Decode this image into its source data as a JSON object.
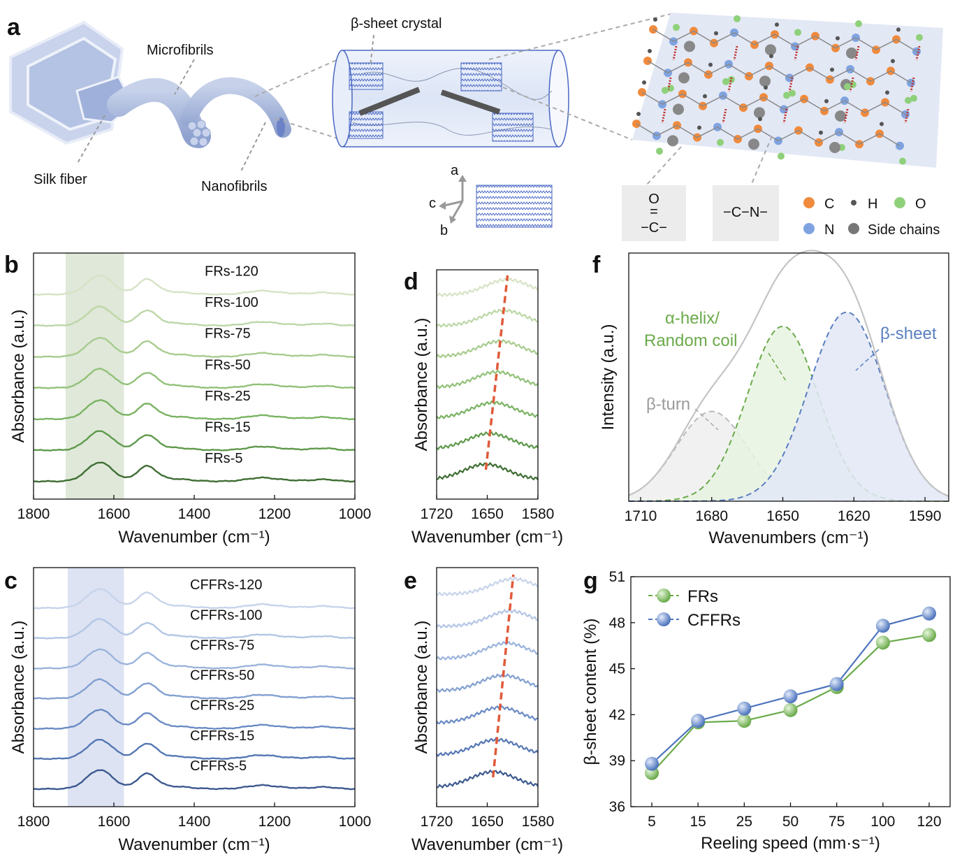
{
  "panel_a": {
    "label": "a",
    "labels": {
      "silk_fiber": "Silk fiber",
      "microfibrils": "Microfibrils",
      "nanofibrils": "Nanofibrils",
      "beta_sheet_crystal": "β-sheet crystal"
    },
    "axes": {
      "a": "a",
      "b": "b",
      "c": "c"
    },
    "group_boxes": {
      "carbonyl_top": "O",
      "carbonyl_mid": "=",
      "carbonyl_bottom": "−C−",
      "amide": "−C−N−"
    },
    "legend": [
      {
        "symbol": "C",
        "color": "#f08a3c"
      },
      {
        "symbol": "H",
        "color": "#555555"
      },
      {
        "symbol": "O",
        "color": "#8fd07a"
      },
      {
        "symbol": "N",
        "color": "#7fa3e0"
      },
      {
        "symbol": "Side chains",
        "color": "#777777"
      }
    ]
  },
  "chart_data": [
    {
      "panel": "b",
      "type": "line",
      "xlabel": "Wavenumber (cm⁻¹)",
      "ylabel": "Absorbance (a.u.)",
      "xlim": [
        1800,
        1000
      ],
      "xticks": [
        1800,
        1600,
        1400,
        1200,
        1000
      ],
      "highlight_range": [
        1720,
        1575
      ],
      "series": [
        {
          "name": "FRs-120",
          "color": "#d6e3c6"
        },
        {
          "name": "FRs-100",
          "color": "#bdd7a7"
        },
        {
          "name": "FRs-75",
          "color": "#a8cc8e"
        },
        {
          "name": "FRs-50",
          "color": "#92c179"
        },
        {
          "name": "FRs-25",
          "color": "#7ab362"
        },
        {
          "name": "FRs-15",
          "color": "#5f9a4c"
        },
        {
          "name": "FRs-5",
          "color": "#3f6e34"
        }
      ]
    },
    {
      "panel": "c",
      "type": "line",
      "xlabel": "Wavenumber (cm⁻¹)",
      "ylabel": "Absorbance (a.u.)",
      "xlim": [
        1800,
        1000
      ],
      "xticks": [
        1800,
        1600,
        1400,
        1200,
        1000
      ],
      "highlight_range": [
        1715,
        1575
      ],
      "series": [
        {
          "name": "CFFRs-120",
          "color": "#c7d4ea"
        },
        {
          "name": "CFFRs-100",
          "color": "#b3c6e5"
        },
        {
          "name": "CFFRs-75",
          "color": "#9bb4dc"
        },
        {
          "name": "CFFRs-50",
          "color": "#82a0d1"
        },
        {
          "name": "CFFRs-25",
          "color": "#6a8bc4"
        },
        {
          "name": "CFFRs-15",
          "color": "#5577b3"
        },
        {
          "name": "CFFRs-5",
          "color": "#3d5a8f"
        }
      ]
    },
    {
      "panel": "d",
      "type": "line",
      "xlabel": "Wavenumber (cm⁻¹)",
      "ylabel": "Absorbance (a.u.)",
      "xlim": [
        1720,
        1580
      ],
      "xticks": [
        1720,
        1650,
        1580
      ],
      "peak_shift_line": {
        "from": [
          1652,
          0
        ],
        "to": [
          1622,
          6
        ],
        "color": "#e05a3a"
      }
    },
    {
      "panel": "e",
      "type": "line",
      "xlabel": "Wavenumber (cm⁻¹)",
      "ylabel": "Absorbance (a.u.)",
      "xlim": [
        1720,
        1580
      ],
      "xticks": [
        1720,
        1650,
        1580
      ],
      "peak_shift_line": {
        "from": [
          1642,
          0
        ],
        "to": [
          1614,
          6
        ],
        "color": "#e05a3a"
      }
    },
    {
      "panel": "f",
      "type": "area",
      "xlabel": "Wavenumbers (cm⁻¹)",
      "ylabel": "Intensity (a.u.)",
      "xlim": [
        1715,
        1580
      ],
      "xticks": [
        1710,
        1680,
        1650,
        1620,
        1590
      ],
      "series": [
        {
          "name": "β-turn",
          "center": 1680,
          "sigma": 15,
          "amp": 0.38,
          "color": "#bbbbbb",
          "fill": "#eeeeee"
        },
        {
          "name": "α-helix/\nRandom coil",
          "center": 1650,
          "sigma": 15,
          "amp": 0.74,
          "color": "#6aaa4a",
          "fill": "#e8f3e2"
        },
        {
          "name": "β-sheet",
          "center": 1623,
          "sigma": 16,
          "amp": 0.8,
          "color": "#5a7fc0",
          "fill": "#e2e8f6"
        }
      ],
      "labels": {
        "beta_turn": "β-turn",
        "alpha_helix_1": "α-helix/",
        "alpha_helix_2": "Random coil",
        "beta_sheet": "β-sheet"
      }
    },
    {
      "panel": "g",
      "type": "line",
      "xlabel": "Reeling speed (mm·s⁻¹)",
      "ylabel": "β-sheet content (%)",
      "categories": [
        "5",
        "15",
        "25",
        "50",
        "75",
        "100",
        "120"
      ],
      "ylim": [
        36,
        51
      ],
      "yticks": [
        36,
        39,
        42,
        45,
        48,
        51
      ],
      "series": [
        {
          "name": "FRs",
          "values": [
            38.2,
            41.5,
            41.6,
            42.3,
            43.8,
            46.7,
            47.2
          ],
          "color": "#6aaa4a"
        },
        {
          "name": "CFFRs",
          "values": [
            38.8,
            41.6,
            42.4,
            43.2,
            44.0,
            47.8,
            48.6
          ],
          "color": "#4d74bd"
        }
      ]
    }
  ]
}
